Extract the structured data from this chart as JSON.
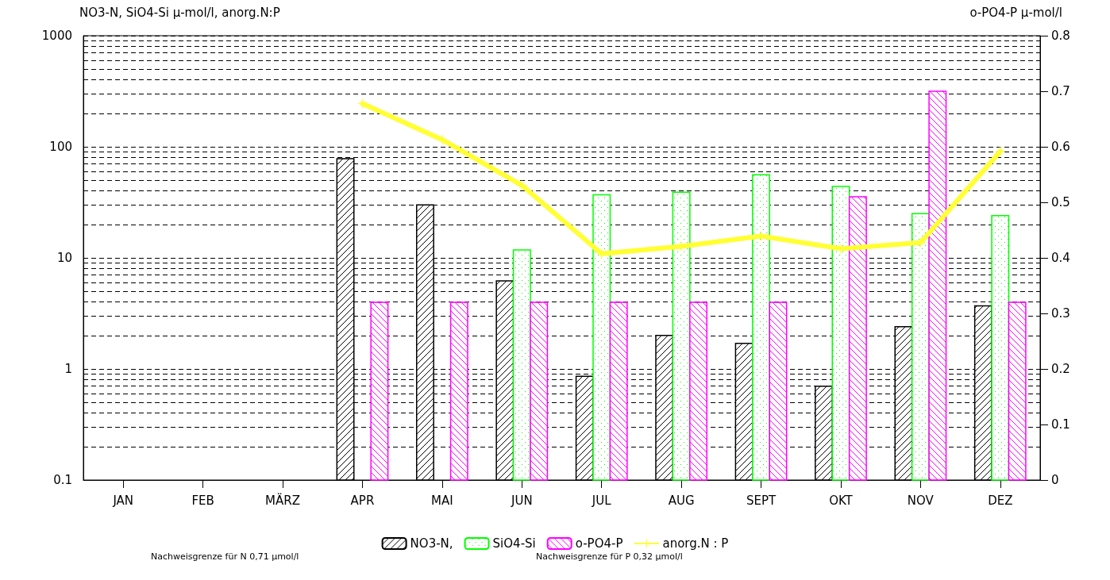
{
  "chart_data": {
    "type": "bar",
    "ylabel": "NO3-N, SiO4-Si µ-mol/l, anorg.N:P",
    "y2label": "o-PO4-P µ-mol/l",
    "categories": [
      "JAN",
      "FEB",
      "MÄRZ",
      "APR",
      "MAI",
      "JUN",
      "JUL",
      "AUG",
      "SEPT",
      "OKT",
      "NOV",
      "DEZ"
    ],
    "series": [
      {
        "name": "NO3-N,",
        "color": "#000000",
        "values": [
          null,
          null,
          null,
          78,
          30,
          6.2,
          0.86,
          2.0,
          1.7,
          0.7,
          2.4,
          3.7
        ]
      },
      {
        "name": "SiO4-Si",
        "color": "#00ff00",
        "values": [
          null,
          null,
          null,
          null,
          null,
          11.8,
          37,
          39,
          56,
          44,
          25,
          24
        ]
      },
      {
        "name": "o-PO4-P",
        "color": "#ff00ff",
        "axis": "y2",
        "values": [
          null,
          null,
          null,
          0.32,
          0.32,
          0.32,
          0.32,
          0.32,
          0.32,
          0.51,
          0.7,
          0.32
        ]
      },
      {
        "name": "anorg.N : P",
        "type": "line",
        "color": "#ffff33",
        "marker": "cross",
        "values": [
          null,
          null,
          null,
          245,
          116,
          45,
          10.9,
          12.7,
          15.7,
          12.1,
          13.7,
          91
        ]
      }
    ],
    "log": "y",
    "ylim": [
      0.1,
      1000
    ],
    "yticks": [
      0.1,
      {
        "value": 0.2,
        "label": null
      },
      {
        "value": 0.3,
        "label": null
      },
      {
        "value": 0.4,
        "label": null
      },
      {
        "value": 0.5,
        "label": null
      },
      {
        "value": 0.6,
        "label": null
      },
      {
        "value": 0.7,
        "label": null
      },
      {
        "value": 0.8,
        "label": null
      },
      {
        "value": 0.9,
        "label": null
      },
      1,
      {
        "value": 2,
        "label": null
      },
      {
        "value": 3,
        "label": null
      },
      {
        "value": 4,
        "label": null
      },
      {
        "value": 5,
        "label": null
      },
      {
        "value": 6,
        "label": null
      },
      {
        "value": 7,
        "label": null
      },
      {
        "value": 8,
        "label": null
      },
      {
        "value": 9,
        "label": null
      },
      10,
      {
        "value": 20,
        "label": null
      },
      {
        "value": 30,
        "label": null
      },
      {
        "value": 40,
        "label": null
      },
      {
        "value": 50,
        "label": null
      },
      {
        "value": 60,
        "label": null
      },
      {
        "value": 70,
        "label": null
      },
      {
        "value": 80,
        "label": null
      },
      {
        "value": 90,
        "label": null
      },
      100,
      {
        "value": 200,
        "label": null
      },
      {
        "value": 300,
        "label": null
      },
      {
        "value": 400,
        "label": null
      },
      {
        "value": 500,
        "label": null
      },
      {
        "value": 600,
        "label": null
      },
      {
        "value": 700,
        "label": null
      },
      {
        "value": 800,
        "label": null
      },
      {
        "value": 900,
        "label": null
      },
      1000
    ],
    "y2lim": [
      0,
      0.8
    ],
    "y2ticks": [
      0,
      0.1,
      0.2,
      0.3,
      0.4,
      0.5,
      0.6,
      0.7,
      0.8
    ],
    "grid": "y",
    "legend": "bottom",
    "annotations": [
      "Nachweisgrenze für N 0,71 µmol/l",
      "Nachweisgrenze für P 0,32 µmol/l"
    ]
  }
}
